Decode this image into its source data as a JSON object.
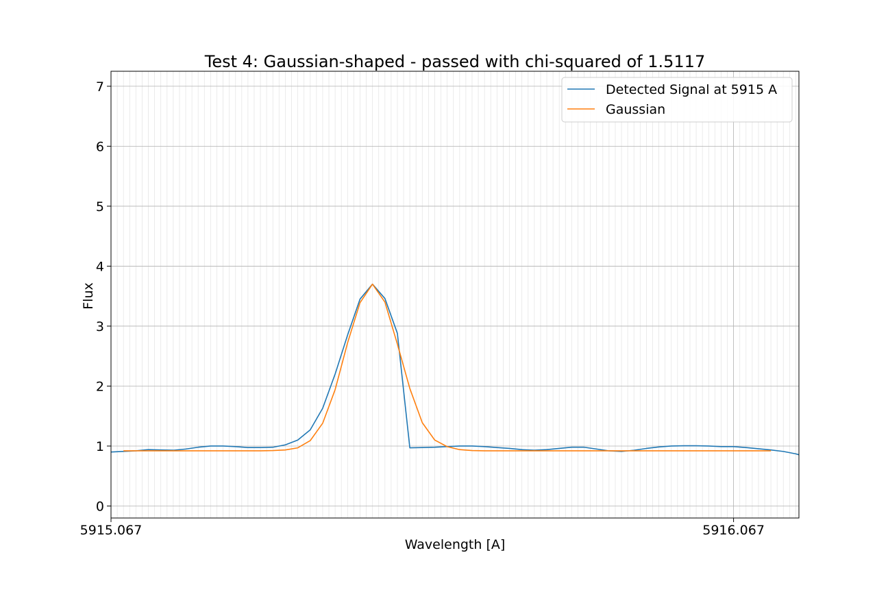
{
  "chart_data": {
    "type": "line",
    "title": "Test 4: Gaussian-shaped - passed with chi-squared of 1.5117",
    "xlabel": "Wavelength [A]",
    "ylabel": "Flux",
    "xlim": [
      5915.067,
      5916.172
    ],
    "ylim": [
      -0.2,
      7.25
    ],
    "x_ticks": [
      5915.067,
      5916.067
    ],
    "x_tick_labels": [
      "5915.067",
      "5916.067"
    ],
    "y_ticks": [
      0,
      1,
      2,
      3,
      4,
      5,
      6,
      7
    ],
    "y_tick_labels": [
      "0",
      "1",
      "2",
      "3",
      "4",
      "5",
      "6",
      "7"
    ],
    "grid": true,
    "legend_position": "top-right",
    "series": [
      {
        "name": "Detected Signal at 5915 A",
        "color": "#1f77b4",
        "x": [
          5915.067,
          5915.087,
          5915.107,
          5915.127,
          5915.147,
          5915.167,
          5915.187,
          5915.207,
          5915.227,
          5915.247,
          5915.267,
          5915.287,
          5915.307,
          5915.327,
          5915.347,
          5915.367,
          5915.387,
          5915.407,
          5915.427,
          5915.447,
          5915.467,
          5915.487,
          5915.507,
          5915.527,
          5915.547,
          5915.567,
          5915.587,
          5915.607,
          5915.627,
          5915.647,
          5915.667,
          5915.687,
          5915.707,
          5915.727,
          5915.747,
          5915.767,
          5915.787,
          5915.807,
          5915.827,
          5915.847,
          5915.867,
          5915.887,
          5915.907,
          5915.927,
          5915.947,
          5915.967,
          5915.987,
          5916.007,
          5916.027,
          5916.047,
          5916.067,
          5916.087,
          5916.107,
          5916.127,
          5916.147,
          5916.167,
          5916.172
        ],
        "y": [
          0.9,
          0.91,
          0.92,
          0.94,
          0.935,
          0.93,
          0.95,
          0.98,
          1.0,
          1.0,
          0.99,
          0.975,
          0.975,
          0.98,
          1.02,
          1.1,
          1.27,
          1.63,
          2.2,
          2.85,
          3.45,
          3.7,
          3.46,
          2.88,
          0.97,
          0.975,
          0.98,
          0.99,
          1.0,
          1.0,
          0.99,
          0.975,
          0.96,
          0.94,
          0.93,
          0.94,
          0.96,
          0.98,
          0.98,
          0.95,
          0.92,
          0.91,
          0.93,
          0.96,
          0.985,
          1.0,
          1.005,
          1.005,
          1.0,
          0.99,
          0.99,
          0.975,
          0.955,
          0.935,
          0.91,
          0.87,
          0.855
        ]
      },
      {
        "name": "Gaussian",
        "color": "#ff7f0e",
        "x": [
          5915.087,
          5915.107,
          5915.127,
          5915.147,
          5915.167,
          5915.187,
          5915.207,
          5915.227,
          5915.247,
          5915.267,
          5915.287,
          5915.307,
          5915.327,
          5915.347,
          5915.367,
          5915.387,
          5915.407,
          5915.427,
          5915.447,
          5915.467,
          5915.487,
          5915.507,
          5915.527,
          5915.547,
          5915.567,
          5915.587,
          5915.607,
          5915.627,
          5915.647,
          5915.667,
          5915.687,
          5915.707,
          5915.727,
          5915.747,
          5915.767,
          5915.787,
          5915.807,
          5915.827,
          5915.847,
          5915.867,
          5915.887,
          5915.907,
          5915.927,
          5915.947,
          5915.967,
          5915.987,
          5916.007,
          5916.027,
          5916.047,
          5916.067,
          5916.087,
          5916.107,
          5916.127
        ],
        "y": [
          0.92,
          0.92,
          0.92,
          0.92,
          0.92,
          0.92,
          0.92,
          0.92,
          0.92,
          0.92,
          0.92,
          0.92,
          0.925,
          0.935,
          0.97,
          1.09,
          1.38,
          1.94,
          2.72,
          3.39,
          3.7,
          3.4,
          2.7,
          1.96,
          1.39,
          1.1,
          0.99,
          0.94,
          0.925,
          0.92,
          0.92,
          0.92,
          0.92,
          0.92,
          0.92,
          0.92,
          0.92,
          0.92,
          0.92,
          0.92,
          0.92,
          0.92,
          0.92,
          0.92,
          0.92,
          0.92,
          0.92,
          0.92,
          0.92,
          0.92,
          0.92,
          0.92,
          0.92
        ]
      }
    ]
  }
}
